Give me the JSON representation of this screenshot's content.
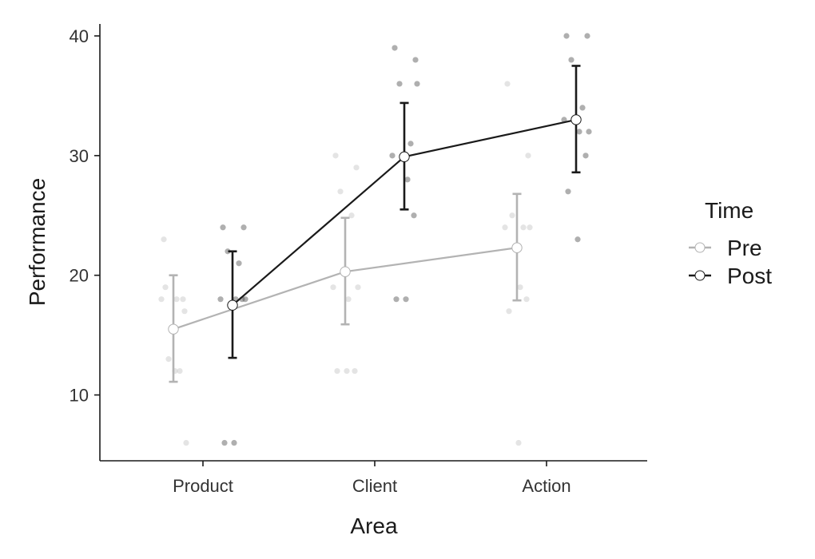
{
  "chart_data": {
    "type": "line",
    "title": "",
    "xlabel": "Area",
    "ylabel": "Performance",
    "categories": [
      "Product",
      "Client",
      "Action"
    ],
    "yticks": [
      10,
      20,
      30,
      40
    ],
    "ylim": [
      4.5,
      41
    ],
    "grid": false,
    "legend": {
      "title": "Time",
      "placement": "right"
    },
    "series": [
      {
        "name": "Pre",
        "color": "#b3b3b3",
        "means": [
          15.5,
          20.3,
          22.3
        ],
        "ci_low": [
          11.1,
          15.9,
          17.9
        ],
        "ci_high": [
          20.0,
          24.8,
          26.8
        ],
        "raw": [
          [
            23,
            17,
            13,
            12,
            18,
            18,
            18,
            19,
            12,
            6
          ],
          [
            30,
            29,
            27,
            25,
            19,
            18,
            12,
            12,
            12,
            19
          ],
          [
            36,
            30,
            25,
            24,
            24,
            19,
            18,
            17,
            6,
            24
          ]
        ]
      },
      {
        "name": "Post",
        "color": "#1a1a1a",
        "means": [
          17.5,
          29.9,
          33.0
        ],
        "ci_low": [
          13.1,
          25.5,
          28.6
        ],
        "ci_high": [
          22.0,
          34.4,
          37.5
        ],
        "raw": [
          [
            24,
            24,
            22,
            21,
            18,
            18,
            18,
            6,
            6,
            18
          ],
          [
            39,
            38,
            36,
            31,
            30,
            28,
            25,
            18,
            18,
            36
          ],
          [
            40,
            40,
            38,
            34,
            33,
            32,
            30,
            27,
            23,
            32
          ]
        ]
      }
    ]
  }
}
